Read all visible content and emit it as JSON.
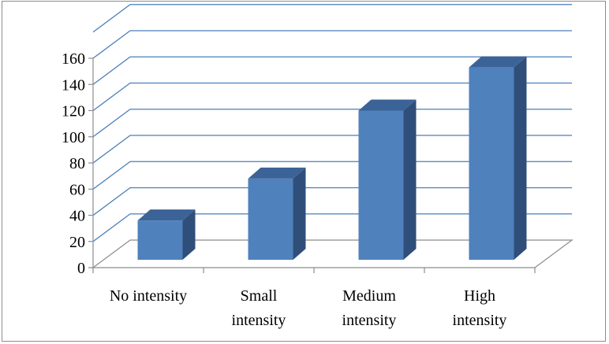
{
  "chart_data": {
    "type": "bar",
    "subtype": "3d-column",
    "title": "",
    "xlabel": "",
    "ylabel": "",
    "categories": [
      [
        "No intensity"
      ],
      [
        "Small",
        "intensity"
      ],
      [
        "Medium",
        "intensity"
      ],
      [
        "High",
        "intensity"
      ]
    ],
    "values": [
      30,
      62,
      114,
      147
    ],
    "ylim": [
      0,
      160
    ],
    "yticks": [
      "0",
      "20",
      "40",
      "60",
      "80",
      "100",
      "120",
      "140",
      "160"
    ],
    "grid": true,
    "legend": "none",
    "colors": {
      "bar_front": "#4F81BD",
      "bar_side": "#2F4F7A",
      "bar_top": "#3B6397",
      "gridline": "#4A7EBB",
      "axis": "#8c8c8c"
    }
  }
}
